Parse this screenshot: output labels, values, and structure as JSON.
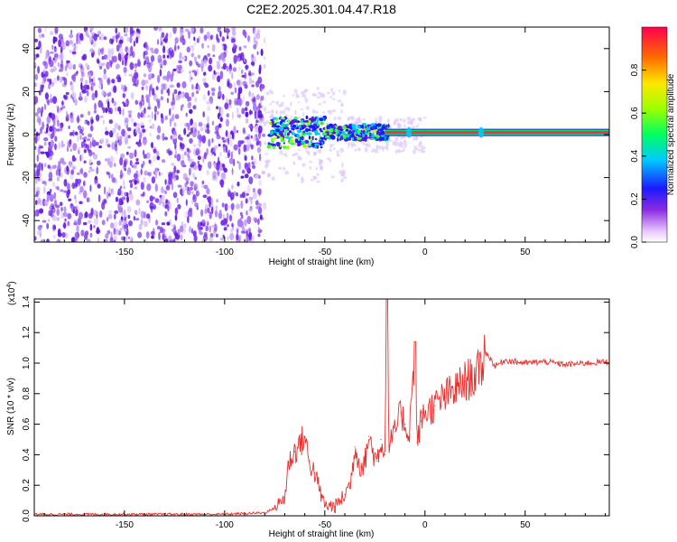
{
  "title": "C2E2.2025.301.04.47.R18",
  "top_panel": {
    "ylabel": "Frequency (Hz)",
    "xlabel": "Height of straight line (km)",
    "colorbar_label": "Normalized spectral amplitude",
    "colorbar_ticks": [
      "0.0",
      "0.2",
      "0.4",
      "0.6",
      "0.8"
    ]
  },
  "bottom_panel": {
    "ylabel": "SNR (10 * v/v)",
    "xlabel": "Height of straight line (km)",
    "scale_label": "(x10",
    "scale_exp": "4",
    "scale_close": ")"
  },
  "colors": {
    "signal": "#e8302f",
    "noise_purple": "#6a1fe0",
    "axis": "#000000"
  },
  "chart_data": [
    {
      "type": "heatmap",
      "title": "C2E2.2025.301.04.47.R18",
      "xlabel": "Height of straight line (km)",
      "ylabel": "Frequency (Hz)",
      "xlim": [
        -195,
        92
      ],
      "ylim": [
        -50,
        50
      ],
      "x_ticks": [
        -150,
        -100,
        -50,
        0,
        50
      ],
      "x_tick_labels": [
        "-150",
        "-100",
        "-50",
        "0",
        "50"
      ],
      "y_ticks": [
        -40,
        -20,
        0,
        20,
        40
      ],
      "y_tick_labels": [
        "-40",
        "-20",
        "0",
        "20",
        "40"
      ],
      "colorbar": {
        "label": "Normalized spectral amplitude",
        "range": [
          0,
          1
        ],
        "ticks": [
          0.0,
          0.2,
          0.4,
          0.6,
          0.8
        ],
        "tick_labels": [
          "0.0",
          "0.2",
          "0.4",
          "0.6",
          "0.8"
        ],
        "colormap": "rainbow"
      },
      "noise_region_x": [
        -195,
        -80
      ],
      "signal_line": {
        "frequency_hz": 0,
        "x_start": -20,
        "x_end": 92,
        "amplitude": 1.0
      },
      "transition_region_x": [
        -80,
        -20
      ]
    },
    {
      "type": "line",
      "xlabel": "Height of straight line (km)",
      "ylabel": "SNR (10 * v/v)",
      "xlim": [
        -195,
        92
      ],
      "ylim": [
        0,
        1.42
      ],
      "y_scale_multiplier": "x10^4",
      "x_ticks": [
        -150,
        -100,
        -50,
        0,
        50
      ],
      "x_tick_labels": [
        "-150",
        "-100",
        "-50",
        "0",
        "50"
      ],
      "y_ticks": [
        0.0,
        0.2,
        0.4,
        0.6,
        0.8,
        1.0,
        1.2,
        1.4
      ],
      "y_tick_labels": [
        "0.0",
        "0.2",
        "0.4",
        "0.6",
        "0.8",
        "1.0",
        "1.2",
        "1.4"
      ],
      "series": [
        {
          "color": "#e8302f",
          "x": [
            -195,
            -150,
            -100,
            -80,
            -75,
            -70,
            -68,
            -65,
            -62,
            -60,
            -58,
            -55,
            -52,
            -50,
            -45,
            -42,
            -40,
            -37,
            -35,
            -32,
            -30,
            -28,
            -26,
            -24,
            -22,
            -20,
            -19,
            -18,
            -15,
            -12,
            -10,
            -8,
            -6,
            -5,
            -4,
            -2,
            0,
            5,
            10,
            15,
            20,
            25,
            28,
            30,
            35,
            40,
            50,
            60,
            70,
            80,
            92
          ],
          "y": [
            0.01,
            0.01,
            0.01,
            0.02,
            0.05,
            0.12,
            0.35,
            0.42,
            0.48,
            0.52,
            0.36,
            0.28,
            0.14,
            0.07,
            0.06,
            0.1,
            0.14,
            0.22,
            0.45,
            0.32,
            0.35,
            0.52,
            0.42,
            0.36,
            0.5,
            0.4,
            1.42,
            0.46,
            0.55,
            0.68,
            0.6,
            0.52,
            0.9,
            1.14,
            0.48,
            0.62,
            0.68,
            0.72,
            0.78,
            0.82,
            0.88,
            0.92,
            0.96,
            1.08,
            0.98,
            1.02,
            1.0,
            1.01,
            0.99,
            1.0,
            1.01
          ]
        }
      ]
    }
  ]
}
